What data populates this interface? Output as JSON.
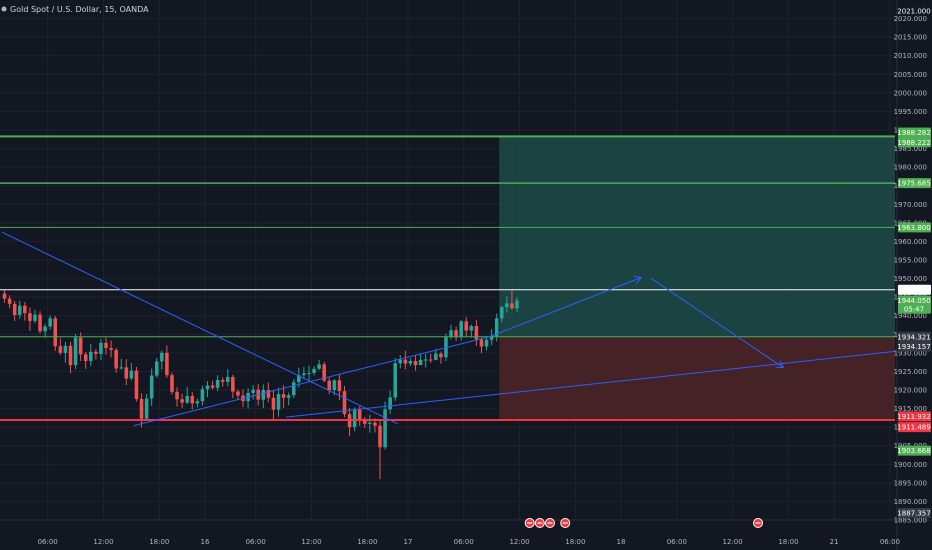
{
  "header": {
    "title": "Gold Spot / U.S. Dollar, 15, OANDA",
    "currency": "USD"
  },
  "colors": {
    "background": "#131722",
    "plot_bg": "#131722",
    "grid": "#1f2331",
    "up": "#26a69a",
    "down": "#ef5350",
    "axis_text": "#b2b5be",
    "green_line": "#4caf50",
    "red_line": "#f23645",
    "white_line": "#ffffff",
    "blue_line": "#2962ff",
    "profit_zone": "#1d4b48",
    "loss_zone": "#4a2327"
  },
  "chart_data": {
    "type": "candlestick",
    "title": "Gold Spot / U.S. Dollar, 15, OANDA",
    "xlabel": "",
    "ylabel": "USD",
    "y_range": [
      1885,
      2025
    ],
    "y_ticks": [
      1885,
      1890,
      1895,
      1900,
      1905,
      1910,
      1915,
      1920,
      1925,
      1930,
      1935,
      1940,
      1945,
      1950,
      1955,
      1960,
      1965,
      1970,
      1975,
      1980,
      1985,
      1990,
      1995,
      2000,
      2005,
      2010,
      2015,
      2020
    ],
    "y_tick_labels": [
      "1885.000",
      "1890.000",
      "1895.000",
      "1900.000",
      "1905.000",
      "1910.000",
      "1915.000",
      "1920.000",
      "1925.000",
      "1930.000",
      "1935.000",
      "1940.000",
      "1945.000",
      "1950.000",
      "1955.000",
      "1960.000",
      "1965.000",
      "1970.000",
      "1975.000",
      "1980.000",
      "1985.000",
      "1990.000",
      "1995.000",
      "2000.000",
      "2005.000",
      "2010.000",
      "2015.000",
      "2020.000"
    ],
    "x_range": [
      0,
      176
    ],
    "x_ticks": [
      {
        "t": 9,
        "label": "06:00"
      },
      {
        "t": 20,
        "label": "12:00"
      },
      {
        "t": 31,
        "label": "18:00"
      },
      {
        "t": 40,
        "label": "16"
      },
      {
        "t": 50,
        "label": "06:00"
      },
      {
        "t": 61,
        "label": "12:00"
      },
      {
        "t": 72,
        "label": "18:00"
      },
      {
        "t": 80,
        "label": "17"
      },
      {
        "t": 91,
        "label": "06:00"
      },
      {
        "t": 102,
        "label": "12:00"
      },
      {
        "t": 113,
        "label": "18:00"
      },
      {
        "t": 122,
        "label": "18"
      },
      {
        "t": 133,
        "label": "06:00"
      },
      {
        "t": 144,
        "label": "12:00"
      },
      {
        "t": 155,
        "label": "18:00"
      },
      {
        "t": 164,
        "label": "21"
      },
      {
        "t": 175,
        "label": "06:00"
      }
    ],
    "candles": [
      [
        1946.0,
        1944.6,
        1947.0,
        1943.5
      ],
      [
        1944.6,
        1943.2,
        1945.5,
        1942.0
      ],
      [
        1943.2,
        1940.2,
        1944.0,
        1938.6
      ],
      [
        1940.2,
        1942.7,
        1944.0,
        1939.2
      ],
      [
        1942.7,
        1940.7,
        1943.7,
        1938.7
      ],
      [
        1940.7,
        1938.6,
        1942.2,
        1935.9
      ],
      [
        1938.6,
        1940.3,
        1941.6,
        1938.0
      ],
      [
        1940.3,
        1935.8,
        1941.2,
        1935.2
      ],
      [
        1935.8,
        1937.1,
        1937.8,
        1934.1
      ],
      [
        1937.1,
        1939.3,
        1940.0,
        1936.2
      ],
      [
        1939.3,
        1931.8,
        1939.9,
        1930.5
      ],
      [
        1931.8,
        1930.0,
        1933.9,
        1929.4
      ],
      [
        1930.0,
        1931.9,
        1932.9,
        1927.4
      ],
      [
        1931.9,
        1926.7,
        1933.0,
        1924.5
      ],
      [
        1926.7,
        1934.1,
        1935.1,
        1925.6
      ],
      [
        1934.1,
        1929.6,
        1935.5,
        1927.8
      ],
      [
        1929.6,
        1927.8,
        1930.3,
        1925.7
      ],
      [
        1927.8,
        1930.3,
        1932.4,
        1926.5
      ],
      [
        1930.3,
        1929.7,
        1931.0,
        1928.2
      ],
      [
        1929.7,
        1932.7,
        1933.8,
        1928.0
      ],
      [
        1932.7,
        1931.3,
        1934.1,
        1929.5
      ],
      [
        1931.3,
        1930.8,
        1933.3,
        1928.8
      ],
      [
        1930.8,
        1925.8,
        1931.3,
        1924.6
      ],
      [
        1925.8,
        1926.1,
        1928.4,
        1925.5
      ],
      [
        1926.1,
        1923.1,
        1928.3,
        1921.3
      ],
      [
        1923.1,
        1925.2,
        1927.3,
        1922.6
      ],
      [
        1925.2,
        1917.6,
        1926.2,
        1916.9
      ],
      [
        1917.6,
        1912.3,
        1919.1,
        1909.9
      ],
      [
        1912.3,
        1917.7,
        1918.9,
        1911.9
      ],
      [
        1917.7,
        1923.9,
        1925.8,
        1915.7
      ],
      [
        1923.9,
        1927.7,
        1928.6,
        1923.3
      ],
      [
        1927.7,
        1930.0,
        1930.6,
        1925.5
      ],
      [
        1930.0,
        1924.0,
        1932.0,
        1923.3
      ],
      [
        1924.0,
        1919.5,
        1924.7,
        1918.8
      ],
      [
        1919.5,
        1917.5,
        1920.7,
        1915.5
      ],
      [
        1917.5,
        1916.6,
        1919.0,
        1915.2
      ],
      [
        1916.6,
        1918.4,
        1920.8,
        1916.2
      ],
      [
        1918.4,
        1916.4,
        1919.4,
        1914.7
      ],
      [
        1916.4,
        1917.0,
        1917.7,
        1915.3
      ],
      [
        1917.0,
        1920.2,
        1921.2,
        1915.8
      ],
      [
        1920.2,
        1921.2,
        1922.4,
        1918.1
      ],
      [
        1921.2,
        1920.6,
        1922.5,
        1920.1
      ],
      [
        1920.6,
        1922.7,
        1924.0,
        1919.7
      ],
      [
        1922.7,
        1922.2,
        1923.4,
        1920.9
      ],
      [
        1922.2,
        1923.5,
        1925.6,
        1921.0
      ],
      [
        1923.5,
        1919.6,
        1924.1,
        1917.8
      ],
      [
        1919.6,
        1918.5,
        1920.1,
        1917.3
      ],
      [
        1918.5,
        1917.0,
        1920.2,
        1915.4
      ],
      [
        1917.0,
        1919.2,
        1920.5,
        1915.0
      ],
      [
        1919.2,
        1920.1,
        1921.3,
        1917.4
      ],
      [
        1920.1,
        1917.4,
        1921.6,
        1915.8
      ],
      [
        1917.4,
        1920.0,
        1921.5,
        1915.1
      ],
      [
        1920.0,
        1917.9,
        1922.0,
        1916.7
      ],
      [
        1917.9,
        1914.7,
        1920.0,
        1912.2
      ],
      [
        1914.7,
        1918.9,
        1920.6,
        1912.8
      ],
      [
        1918.9,
        1917.9,
        1921.3,
        1915.2
      ],
      [
        1917.9,
        1918.6,
        1919.3,
        1915.9
      ],
      [
        1918.6,
        1922.1,
        1922.9,
        1917.8
      ],
      [
        1922.1,
        1924.0,
        1926.0,
        1920.6
      ],
      [
        1924.0,
        1924.5,
        1926.2,
        1922.9
      ],
      [
        1924.5,
        1924.6,
        1926.6,
        1922.4
      ],
      [
        1924.6,
        1925.7,
        1926.4,
        1923.9
      ],
      [
        1925.7,
        1926.9,
        1928.1,
        1925.3
      ],
      [
        1926.9,
        1922.5,
        1927.6,
        1922.1
      ],
      [
        1922.5,
        1920.0,
        1923.4,
        1918.9
      ],
      [
        1920.0,
        1922.6,
        1922.9,
        1918.6
      ],
      [
        1922.6,
        1919.7,
        1924.3,
        1917.3
      ],
      [
        1919.7,
        1913.5,
        1921.1,
        1912.7
      ],
      [
        1913.5,
        1910.0,
        1915.2,
        1907.6
      ],
      [
        1910.0,
        1914.7,
        1915.3,
        1908.9
      ],
      [
        1914.7,
        1912.0,
        1915.6,
        1910.3
      ],
      [
        1912.0,
        1910.9,
        1912.7,
        1909.8
      ],
      [
        1910.9,
        1911.2,
        1913.3,
        1908.5
      ],
      [
        1911.2,
        1910.4,
        1912.4,
        1908.6
      ],
      [
        1910.4,
        1904.6,
        1911.9,
        1896.0
      ],
      [
        1904.6,
        1914.8,
        1916.9,
        1904.0
      ],
      [
        1914.8,
        1918.0,
        1919.8,
        1913.5
      ],
      [
        1918.0,
        1927.2,
        1928.6,
        1917.1
      ],
      [
        1927.2,
        1928.2,
        1929.4,
        1925.8
      ],
      [
        1928.2,
        1927.1,
        1930.6,
        1925.5
      ],
      [
        1927.1,
        1927.8,
        1928.6,
        1926.4
      ],
      [
        1927.8,
        1926.7,
        1929.4,
        1925.2
      ],
      [
        1926.7,
        1928.1,
        1929.8,
        1927.1
      ],
      [
        1928.1,
        1928.2,
        1929.7,
        1926.1
      ],
      [
        1928.2,
        1928.1,
        1929.8,
        1927.3
      ],
      [
        1928.1,
        1929.8,
        1931.1,
        1928.0
      ],
      [
        1929.8,
        1928.8,
        1930.3,
        1927.1
      ],
      [
        1928.8,
        1934.4,
        1935.2,
        1927.8
      ],
      [
        1934.4,
        1936.1,
        1937.6,
        1933.6
      ],
      [
        1936.1,
        1934.2,
        1937.1,
        1933.2
      ],
      [
        1934.2,
        1938.5,
        1938.8,
        1933.3
      ],
      [
        1938.5,
        1936.0,
        1939.6,
        1934.4
      ],
      [
        1936.0,
        1937.2,
        1937.6,
        1934.1
      ],
      [
        1937.2,
        1933.6,
        1938.8,
        1931.9
      ],
      [
        1933.6,
        1931.7,
        1934.1,
        1929.9
      ],
      [
        1931.7,
        1933.5,
        1934.6,
        1930.6
      ],
      [
        1933.5,
        1934.5,
        1936.4,
        1932.1
      ],
      [
        1934.5,
        1939.3,
        1940.6,
        1933.1
      ],
      [
        1939.3,
        1942.3,
        1942.6,
        1938.2
      ],
      [
        1942.3,
        1943.3,
        1945.2,
        1940.8
      ],
      [
        1943.3,
        1942.0,
        1946.8,
        1941.6
      ],
      [
        1942.0,
        1944.1,
        1944.9,
        1941.0
      ]
    ],
    "horizontal_lines": [
      {
        "price": 1988.282,
        "color": "green",
        "width": 2
      },
      {
        "price": 1975.685,
        "color": "green",
        "width": 1.5
      },
      {
        "price": 1963.8,
        "color": "green",
        "width": 1
      },
      {
        "price": 1946.993,
        "color": "white",
        "width": 1
      },
      {
        "price": 1934.321,
        "color": "green",
        "width": 1
      },
      {
        "price": 1911.932,
        "color": "red",
        "width": 2
      }
    ],
    "position_zones": {
      "start_t": 98,
      "end_t": 176,
      "entry": 1934.321,
      "target": 1988.282,
      "stop": 1911.932
    },
    "trend_lines": [
      {
        "t1": 0,
        "p1": 1962.5,
        "t2": 78,
        "p2": 1910.9,
        "arrow": false
      },
      {
        "t1": 26,
        "p1": 1910.4,
        "t2": 96,
        "p2": 1934.3,
        "arrow": false
      },
      {
        "t1": 96,
        "p1": 1934.3,
        "t2": 126,
        "p2": 1950.3,
        "arrow": true
      },
      {
        "t1": 128,
        "p1": 1950.0,
        "t2": 154,
        "p2": 1926.0,
        "arrow": true
      },
      {
        "t1": 56,
        "p1": 1912.7,
        "t2": 176,
        "p2": 1930.4,
        "arrow": false
      }
    ],
    "price_tags": [
      {
        "price": 2022.0,
        "label": "2021.000",
        "kind": "plain"
      },
      {
        "price": 1989.3,
        "label": "1988.282",
        "kind": "green"
      },
      {
        "price": 1986.7,
        "label": "1988.222",
        "kind": "green"
      },
      {
        "price": 1975.685,
        "label": "1975.685",
        "kind": "green"
      },
      {
        "price": 1963.8,
        "label": "1963.800",
        "kind": "green"
      },
      {
        "price": 1946.993,
        "label": "1946.993",
        "kind": "white"
      },
      {
        "price": 1944.05,
        "label": "1944.050",
        "kind": "green",
        "sub": "05:47"
      },
      {
        "price": 1934.321,
        "label": "1934.321",
        "kind": "gray"
      },
      {
        "price": 1931.7,
        "label": "1934.157",
        "kind": "gray"
      },
      {
        "price": 1912.9,
        "label": "1911.932",
        "kind": "red"
      },
      {
        "price": 1910.0,
        "label": "1911.489",
        "kind": "red"
      },
      {
        "price": 1903.668,
        "label": "1903.668",
        "kind": "green"
      },
      {
        "price": 1886.9,
        "label": "1887.357",
        "kind": "gray"
      }
    ],
    "event_markers": [
      {
        "t": 104
      },
      {
        "t": 106
      },
      {
        "t": 108
      },
      {
        "t": 111
      },
      {
        "t": 149
      }
    ]
  }
}
